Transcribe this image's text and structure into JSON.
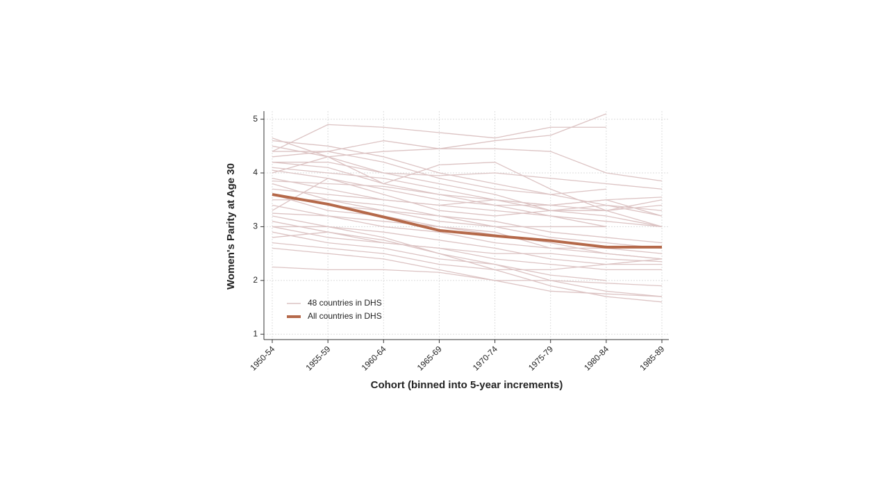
{
  "chart_data": {
    "type": "line",
    "x_label": "Cohort (binned into 5-year increments)",
    "y_label": "Women's Parity at Age 30",
    "categories": [
      "1950-54",
      "1955-59",
      "1960-64",
      "1965-69",
      "1970-74",
      "1975-79",
      "1980-84",
      "1985-89"
    ],
    "ylim": [
      0.9,
      5.15
    ],
    "yticks": [
      1,
      2,
      3,
      4,
      5
    ],
    "grid": true,
    "legend": "lower-left",
    "series": [
      {
        "name": "48 countries in DHS",
        "color": "#dcc3c3",
        "lines": [
          [
            4.6,
            4.5,
            4.3,
            4.0,
            3.8,
            3.6,
            3.4,
            3.2
          ],
          [
            4.4,
            4.9,
            4.85,
            4.75,
            4.65,
            4.85,
            4.85,
            null
          ],
          [
            4.4,
            4.4,
            4.6,
            4.45,
            4.6,
            4.7,
            5.1,
            null
          ],
          [
            4.65,
            4.3,
            4.4,
            4.45,
            4.45,
            4.4,
            4.0,
            3.85
          ],
          [
            4.2,
            4.2,
            4.0,
            3.95,
            4.0,
            3.9,
            3.8,
            3.7
          ],
          [
            4.1,
            4.0,
            3.9,
            3.7,
            3.5,
            3.4,
            3.3,
            3.5
          ],
          [
            4.0,
            4.3,
            3.8,
            4.15,
            4.2,
            3.7,
            3.3,
            3.0
          ],
          [
            3.9,
            3.7,
            3.5,
            3.4,
            3.3,
            3.2,
            3.1,
            3.0
          ],
          [
            3.7,
            3.6,
            3.5,
            3.4,
            3.5,
            3.4,
            3.5,
            3.55
          ],
          [
            3.6,
            3.3,
            3.2,
            3.0,
            2.9,
            2.6,
            2.5,
            2.4
          ],
          [
            3.5,
            3.5,
            3.3,
            3.2,
            3.0,
            3.0,
            3.0,
            null
          ],
          [
            3.3,
            3.9,
            3.6,
            3.3,
            3.2,
            3.3,
            3.4,
            3.3
          ],
          [
            3.2,
            3.0,
            2.8,
            2.5,
            2.3,
            2.0,
            1.8,
            1.7
          ],
          [
            3.1,
            2.9,
            2.7,
            2.6,
            2.4,
            2.3,
            2.2,
            2.2
          ],
          [
            3.0,
            2.8,
            2.7,
            2.6,
            2.5,
            2.5,
            2.4,
            2.35
          ],
          [
            2.8,
            2.9,
            2.75,
            2.5,
            2.2,
            1.9,
            1.7,
            1.6
          ],
          [
            2.6,
            2.5,
            2.4,
            2.2,
            2.0,
            1.8,
            1.75,
            1.7
          ],
          [
            2.25,
            2.2,
            2.2,
            2.15,
            2.0,
            2.0,
            1.95,
            1.9
          ],
          [
            2.9,
            2.7,
            2.6,
            2.4,
            2.3,
            2.1,
            2.0,
            null
          ],
          [
            4.2,
            4.1,
            3.8,
            3.6,
            3.5,
            3.3,
            3.2,
            3.0
          ],
          [
            4.3,
            4.4,
            4.2,
            3.9,
            3.7,
            3.6,
            3.7,
            null
          ],
          [
            3.8,
            3.5,
            3.4,
            3.2,
            3.1,
            2.9,
            2.8,
            2.7
          ],
          [
            3.4,
            3.2,
            3.0,
            2.9,
            2.7,
            2.6,
            2.6,
            2.5
          ],
          [
            3.6,
            3.4,
            3.3,
            3.1,
            3.0,
            2.8,
            2.7,
            2.6
          ],
          [
            4.05,
            3.9,
            3.7,
            3.5,
            3.4,
            3.2,
            3.0,
            null
          ],
          [
            3.0,
            3.0,
            2.9,
            2.75,
            2.6,
            2.4,
            2.3,
            2.3
          ],
          [
            2.7,
            2.6,
            2.5,
            2.3,
            2.2,
            2.2,
            2.3,
            2.4
          ],
          [
            3.85,
            3.8,
            3.75,
            3.6,
            3.4,
            3.4,
            3.5,
            3.2
          ],
          [
            3.25,
            3.2,
            3.1,
            3.0,
            2.85,
            2.7,
            2.5,
            2.4
          ],
          [
            4.5,
            4.3,
            4.0,
            3.8,
            3.6,
            3.3,
            3.3,
            3.4
          ]
        ]
      },
      {
        "name": "All countries in DHS",
        "color": "#b5694a",
        "values": [
          3.6,
          3.42,
          3.18,
          2.93,
          2.83,
          2.74,
          2.62,
          2.62
        ]
      }
    ]
  }
}
